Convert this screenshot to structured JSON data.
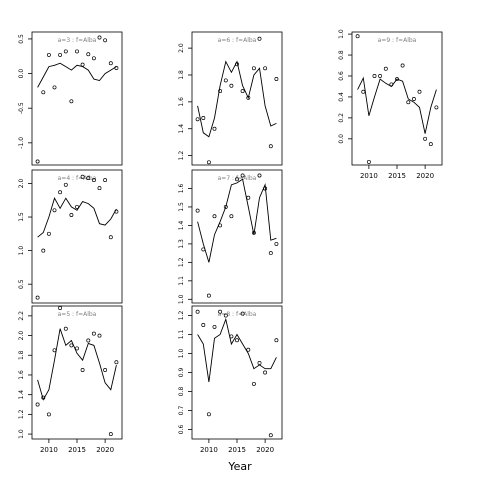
{
  "xlabel": "Year",
  "colors": {
    "line": "#000000",
    "points": "#000000",
    "strip_text": "#808080",
    "frame": "#000000"
  },
  "chart_data": [
    {
      "type": "line",
      "title": "a=3 : f=Alba",
      "xlim": [
        2007,
        2023
      ],
      "ylim": [
        -1.32,
        0.6
      ],
      "yticks": [
        "-1.0",
        "-0.5",
        "0.0",
        "0.5"
      ],
      "yticks_values": [
        -1.0,
        -0.5,
        0.0,
        0.5
      ],
      "xticks": [],
      "series": [
        {
          "kind": "line",
          "x": [
            2008,
            2009,
            2010,
            2011,
            2012,
            2013,
            2014,
            2015,
            2016,
            2017,
            2018,
            2019,
            2020,
            2021,
            2022
          ],
          "y": [
            -0.2,
            -0.05,
            0.1,
            0.12,
            0.15,
            0.1,
            0.05,
            0.12,
            0.1,
            0.05,
            -0.08,
            -0.1,
            0.0,
            0.05,
            0.1
          ]
        },
        {
          "kind": "points",
          "x": [
            2008,
            2009,
            2010,
            2011,
            2012,
            2013,
            2014,
            2015,
            2016,
            2017,
            2018,
            2019,
            2020,
            2021,
            2022
          ],
          "y": [
            -1.27,
            -0.27,
            0.27,
            -0.2,
            0.27,
            0.32,
            -0.4,
            0.32,
            0.13,
            0.28,
            0.22,
            0.52,
            0.48,
            0.15,
            0.08
          ]
        }
      ]
    },
    {
      "type": "line",
      "title": "a=6 : f=Alba",
      "xlim": [
        2007,
        2023
      ],
      "ylim": [
        1.13,
        2.12
      ],
      "yticks": [
        "1.2",
        "1.4",
        "1.6",
        "1.8",
        "2.0"
      ],
      "yticks_values": [
        1.2,
        1.4,
        1.6,
        1.8,
        2.0
      ],
      "xticks": [],
      "series": [
        {
          "kind": "line",
          "x": [
            2008,
            2009,
            2010,
            2011,
            2012,
            2013,
            2014,
            2015,
            2016,
            2017,
            2018,
            2019,
            2020,
            2021,
            2022
          ],
          "y": [
            1.57,
            1.37,
            1.34,
            1.48,
            1.72,
            1.9,
            1.82,
            1.9,
            1.72,
            1.63,
            1.8,
            1.85,
            1.57,
            1.42,
            1.44
          ]
        },
        {
          "kind": "points",
          "x": [
            2008,
            2009,
            2010,
            2011,
            2012,
            2013,
            2014,
            2015,
            2016,
            2017,
            2018,
            2019,
            2020,
            2021,
            2022
          ],
          "y": [
            1.47,
            1.48,
            1.15,
            1.4,
            1.68,
            1.76,
            1.72,
            1.88,
            1.68,
            1.63,
            1.85,
            2.07,
            1.85,
            1.27,
            1.77
          ]
        }
      ]
    },
    {
      "type": "line",
      "title": "a=9 : f=Alba",
      "xlim": [
        2007,
        2023
      ],
      "ylim": [
        -0.25,
        1.02
      ],
      "yticks": [
        "0.0",
        "0.2",
        "0.4",
        "0.6",
        "0.8",
        "1.0"
      ],
      "yticks_values": [
        0.0,
        0.2,
        0.4,
        0.6,
        0.8,
        1.0
      ],
      "xticks": [
        "2010",
        "2015",
        "2020"
      ],
      "xticks_values": [
        2010,
        2015,
        2020
      ],
      "series": [
        {
          "kind": "line",
          "x": [
            2008,
            2009,
            2010,
            2011,
            2012,
            2013,
            2014,
            2015,
            2016,
            2017,
            2018,
            2019,
            2020,
            2021,
            2022
          ],
          "y": [
            0.47,
            0.58,
            0.22,
            0.4,
            0.57,
            0.53,
            0.5,
            0.57,
            0.55,
            0.38,
            0.35,
            0.3,
            0.05,
            0.3,
            0.47
          ]
        },
        {
          "kind": "points",
          "x": [
            2008,
            2009,
            2010,
            2011,
            2012,
            2013,
            2014,
            2015,
            2016,
            2017,
            2018,
            2019,
            2020,
            2021,
            2022
          ],
          "y": [
            0.98,
            0.45,
            -0.22,
            0.6,
            0.6,
            0.67,
            0.52,
            0.57,
            0.7,
            0.35,
            0.38,
            0.45,
            0.0,
            -0.05,
            0.3
          ]
        }
      ]
    },
    {
      "type": "line",
      "title": "a=4 : f=Alba",
      "xlim": [
        2007,
        2023
      ],
      "ylim": [
        0.22,
        2.2
      ],
      "yticks": [
        "0.5",
        "1.0",
        "1.5",
        "2.0"
      ],
      "yticks_values": [
        0.5,
        1.0,
        1.5,
        2.0
      ],
      "xticks": [],
      "series": [
        {
          "kind": "line",
          "x": [
            2008,
            2009,
            2010,
            2011,
            2012,
            2013,
            2014,
            2015,
            2016,
            2017,
            2018,
            2019,
            2020,
            2021,
            2022
          ],
          "y": [
            1.2,
            1.27,
            1.5,
            1.78,
            1.63,
            1.78,
            1.65,
            1.6,
            1.73,
            1.7,
            1.63,
            1.4,
            1.38,
            1.47,
            1.62
          ]
        },
        {
          "kind": "points",
          "x": [
            2008,
            2009,
            2010,
            2011,
            2012,
            2013,
            2014,
            2015,
            2016,
            2017,
            2018,
            2019,
            2020,
            2021,
            2022
          ],
          "y": [
            0.3,
            1.0,
            1.25,
            1.6,
            1.87,
            1.98,
            1.53,
            1.65,
            2.1,
            2.08,
            2.05,
            1.93,
            2.05,
            1.2,
            1.58
          ]
        }
      ]
    },
    {
      "type": "line",
      "title": "a=7 : f=Alba",
      "xlim": [
        2007,
        2023
      ],
      "ylim": [
        0.98,
        1.7
      ],
      "yticks": [
        "1.0",
        "1.1",
        "1.2",
        "1.3",
        "1.4",
        "1.5",
        "1.6"
      ],
      "yticks_values": [
        1.0,
        1.1,
        1.2,
        1.3,
        1.4,
        1.5,
        1.6
      ],
      "xticks": [],
      "series": [
        {
          "kind": "line",
          "x": [
            2008,
            2009,
            2010,
            2011,
            2012,
            2013,
            2014,
            2015,
            2016,
            2017,
            2018,
            2019,
            2020,
            2021,
            2022
          ],
          "y": [
            1.42,
            1.3,
            1.2,
            1.35,
            1.42,
            1.5,
            1.62,
            1.63,
            1.65,
            1.5,
            1.35,
            1.55,
            1.62,
            1.32,
            1.33
          ]
        },
        {
          "kind": "points",
          "x": [
            2008,
            2009,
            2010,
            2011,
            2012,
            2013,
            2014,
            2015,
            2016,
            2017,
            2018,
            2019,
            2020,
            2021,
            2022
          ],
          "y": [
            1.48,
            1.27,
            1.02,
            1.45,
            1.4,
            1.5,
            1.45,
            1.65,
            1.67,
            1.55,
            1.36,
            1.67,
            1.6,
            1.25,
            1.3
          ]
        }
      ]
    },
    {
      "type": "line",
      "title": "a=5 : f=Alba",
      "xlim": [
        2007,
        2023
      ],
      "ylim": [
        0.95,
        2.3
      ],
      "yticks": [
        "1.0",
        "1.2",
        "1.4",
        "1.6",
        "1.8",
        "2.0",
        "2.2"
      ],
      "yticks_values": [
        1.0,
        1.2,
        1.4,
        1.6,
        1.8,
        2.0,
        2.2
      ],
      "xticks": [
        "2010",
        "2015",
        "2020"
      ],
      "xticks_values": [
        2010,
        2015,
        2020
      ],
      "series": [
        {
          "kind": "line",
          "x": [
            2008,
            2009,
            2010,
            2011,
            2012,
            2013,
            2014,
            2015,
            2016,
            2017,
            2018,
            2019,
            2020,
            2021,
            2022
          ],
          "y": [
            1.55,
            1.35,
            1.45,
            1.75,
            2.07,
            1.9,
            1.95,
            1.82,
            1.75,
            1.92,
            1.9,
            1.72,
            1.52,
            1.45,
            1.7
          ]
        },
        {
          "kind": "points",
          "x": [
            2008,
            2009,
            2010,
            2011,
            2012,
            2013,
            2014,
            2015,
            2016,
            2017,
            2018,
            2019,
            2020,
            2021,
            2022
          ],
          "y": [
            1.3,
            1.37,
            1.2,
            1.85,
            2.28,
            2.07,
            1.9,
            1.87,
            1.65,
            1.95,
            2.02,
            2.0,
            1.65,
            1.0,
            1.73
          ]
        }
      ]
    },
    {
      "type": "line",
      "title": "a=8 : f=Alba",
      "xlim": [
        2007,
        2023
      ],
      "ylim": [
        0.55,
        1.25
      ],
      "yticks": [
        "0.6",
        "0.7",
        "0.8",
        "0.9",
        "1.0",
        "1.1",
        "1.2"
      ],
      "yticks_values": [
        0.6,
        0.7,
        0.8,
        0.9,
        1.0,
        1.1,
        1.2
      ],
      "xticks": [
        "2010",
        "2015",
        "2020"
      ],
      "xticks_values": [
        2010,
        2015,
        2020
      ],
      "series": [
        {
          "kind": "line",
          "x": [
            2008,
            2009,
            2010,
            2011,
            2012,
            2013,
            2014,
            2015,
            2016,
            2017,
            2018,
            2019,
            2020,
            2021,
            2022
          ],
          "y": [
            1.1,
            1.05,
            0.85,
            1.08,
            1.1,
            1.18,
            1.05,
            1.1,
            1.05,
            1.0,
            0.92,
            0.94,
            0.92,
            0.92,
            0.98
          ]
        },
        {
          "kind": "points",
          "x": [
            2008,
            2009,
            2010,
            2011,
            2012,
            2013,
            2014,
            2015,
            2016,
            2017,
            2018,
            2019,
            2020,
            2021,
            2022
          ],
          "y": [
            1.22,
            1.15,
            0.68,
            1.14,
            1.22,
            1.2,
            1.09,
            1.07,
            1.21,
            1.02,
            0.84,
            0.95,
            0.9,
            0.57,
            1.07
          ]
        }
      ]
    }
  ]
}
